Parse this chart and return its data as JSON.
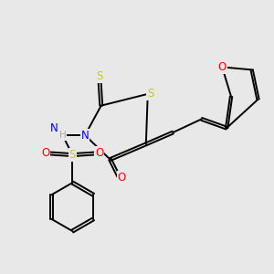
{
  "bg_color": "#e8e8e8",
  "bond_color": "#000000",
  "atom_colors": {
    "S": "#cccc00",
    "N": "#0000ff",
    "O": "#ff0000",
    "H": "#aaaaaa",
    "C": "#000000"
  },
  "figsize": [
    3.0,
    3.0
  ],
  "dpi": 100,
  "lw": 1.4,
  "fontsize": 8.5
}
